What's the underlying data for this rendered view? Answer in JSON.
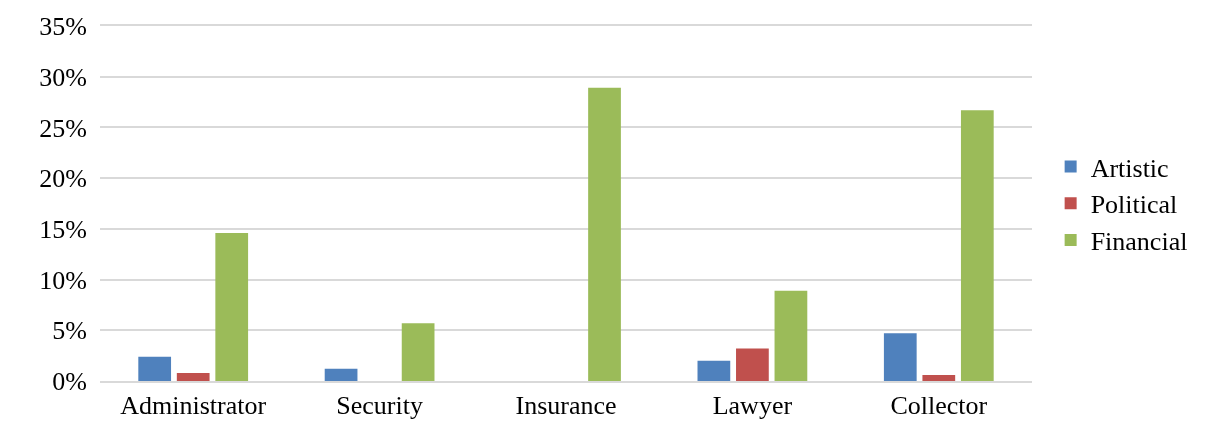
{
  "chart_data": {
    "type": "bar",
    "categories": [
      "Administrator",
      "Security",
      "Insurance",
      "Lawyer",
      "Collector"
    ],
    "series": [
      {
        "name": "Artistic",
        "color": "#4f81bd",
        "values": [
          2.4,
          1.2,
          0,
          2.0,
          4.7
        ]
      },
      {
        "name": "Political",
        "color": "#c0504d",
        "values": [
          0.8,
          0,
          0,
          3.2,
          0.6
        ]
      },
      {
        "name": "Financial",
        "color": "#9bbb59",
        "values": [
          14.6,
          5.7,
          28.9,
          8.9,
          26.7
        ]
      }
    ],
    "ylim": [
      0,
      35
    ],
    "yticks": [
      {
        "value": 0,
        "label": "0%"
      },
      {
        "value": 5,
        "label": "5%"
      },
      {
        "value": 10,
        "label": "10%"
      },
      {
        "value": 15,
        "label": "15%"
      },
      {
        "value": 20,
        "label": "20%"
      },
      {
        "value": 25,
        "label": "25%"
      },
      {
        "value": 30,
        "label": "30%"
      },
      {
        "value": 35,
        "label": "35%"
      }
    ],
    "grid": "y",
    "legend": "right"
  }
}
